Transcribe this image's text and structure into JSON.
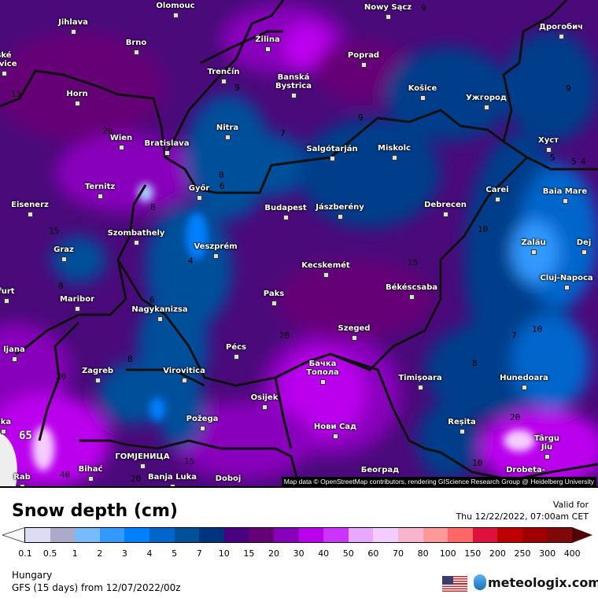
{
  "map": {
    "attribution": "Map data © OpenStreetMap contributors, rendering GIScience Research Group @ Heidelberg University",
    "cities": [
      "Olomouc",
      "Jihlava",
      "Brno",
      "ské\njovice",
      "Žilina",
      "Poprad",
      "Nowy Sącz",
      "Trenčín",
      "Banská\nBystrica",
      "Horn",
      "Wien",
      "Bratislava",
      "Nitra",
      "Košice",
      "Ужгород",
      "Дрогобич",
      "Salgótarján",
      "Miskolc",
      "Хуст",
      "Carei",
      "Baia Mare",
      "Debrecen",
      "Jászberény",
      "Budapest",
      "Győr",
      "Ternitz",
      "Eisenerz",
      "Szombathely",
      "Graz",
      "Veszprém",
      "Zalău",
      "Dej",
      "Cluj-Napoca",
      "Kecskemét",
      "Békéscsaba",
      "Paks",
      "Maribor",
      "Nagykanizsa",
      "Szeged",
      "Pécs",
      "ljana",
      "Virovitica",
      "Zagreb",
      "Бачка\nТопола",
      "Timișoara",
      "Hunedoara",
      "Osijek",
      "Požega",
      "Нови Сад",
      "Reșita",
      "Târgu\nJiu",
      "ГОМЈЕНИЦА",
      "Bihać",
      "Banja Luka",
      "Doboj",
      "Београд",
      "Drobeta-",
      "eka",
      "Rab",
      "furt"
    ],
    "contour_labels": [
      "15",
      "20",
      "15",
      "9",
      "8",
      "6",
      "8",
      "7",
      "9",
      "9",
      "9",
      "5",
      "5",
      "4",
      "10",
      "4",
      "6",
      "8",
      "20",
      "8",
      "20",
      "15",
      "20",
      "40",
      "65",
      "15",
      "10",
      "7",
      "8",
      "10",
      "20"
    ]
  },
  "legend": {
    "title": "Snow depth (cm)",
    "valid_label": "Valid for",
    "valid_time": "Thu 12/22/2022, 07:00am CET",
    "ticks": [
      "0.1",
      "0.5",
      "1",
      "2",
      "3",
      "4",
      "5",
      "7",
      "10",
      "15",
      "20",
      "30",
      "40",
      "50",
      "60",
      "70",
      "80",
      "100",
      "150",
      "200",
      "250",
      "300",
      "400"
    ],
    "colors": [
      "#dcdcf5",
      "#aaaacc",
      "#77bbff",
      "#3399ff",
      "#0080ff",
      "#0066cc",
      "#00509a",
      "#003380",
      "#4a0080",
      "#660077",
      "#8800bb",
      "#bb00ee",
      "#cc33ff",
      "#e8a8ff",
      "#f5ccff",
      "#f8b4cc",
      "#ff9999",
      "#ff6666",
      "#e0103c",
      "#c00000",
      "#a00000",
      "#800808"
    ],
    "under_color": "#f8f8f8",
    "over_color": "#500000"
  },
  "footer": {
    "region": "Hungary",
    "model": "GFS (15 days) from  12/07/2022/00z",
    "brand": "meteologix.com",
    "flag_icon": "us-flag-icon"
  }
}
